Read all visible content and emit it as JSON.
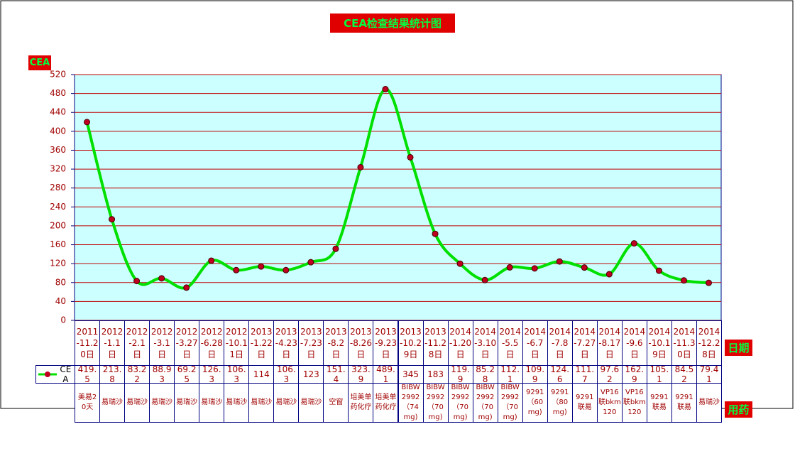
{
  "chart_data": {
    "type": "line",
    "title": "CEA检查结果统计图",
    "y_label": "CEA",
    "x_label": "日期",
    "row_label": "用药",
    "categories": [
      "2011-11.20日",
      "2012-1.1日",
      "2012-2.1日",
      "2012-3.1日",
      "2012-3.27日",
      "2012-6.28日",
      "2012-10.11日",
      "2013-1.22日",
      "2013-4.23日",
      "2013-7.23日",
      "2013-8.2日",
      "2013-8.26日",
      "2013-9.23日",
      "2013-10.29日",
      "2013-11.28日",
      "2014-1.20日",
      "2014-3.10日",
      "2014-5.5日",
      "2014-6.7日",
      "2014-7.8日",
      "2014-7.27日",
      "2014-8.17日",
      "2014-9.6日",
      "2014-10.19日",
      "2014-11.30日",
      "2014-12.28日"
    ],
    "series": [
      {
        "name": "CEA",
        "color": "#00e000",
        "marker_color": "#c00020",
        "values": [
          419.5,
          213.8,
          83.22,
          88.93,
          69.25,
          126.3,
          106.3,
          114,
          106.3,
          123,
          151.4,
          323.9,
          489.1,
          345,
          183,
          119.9,
          85.28,
          112.1,
          109.9,
          124.6,
          111.7,
          97.62,
          162.9,
          105.1,
          84.52,
          79.41
        ]
      }
    ],
    "drugs": [
      "美易20天",
      "易瑞沙",
      "易瑞沙",
      "易瑞沙",
      "易瑞沙",
      "易瑞沙",
      "易瑞沙",
      "易瑞沙",
      "易瑞沙",
      "易瑞沙",
      "空窗",
      "培美单药化疗",
      "培美单药化疗",
      "BIBW2992（74mg)",
      "BIBW2992（70mg)",
      "BIBW2992（70mg)",
      "BIBW2992（70mg)",
      "BIBW2992（70mg)",
      "9291（60mg)",
      "9291（80mg)",
      "9291联易",
      "VP16联bkm120",
      "VP16联bkm120",
      "9291联易",
      "9291联易",
      "易瑞沙"
    ],
    "ylim": [
      0,
      520
    ],
    "yticks": [
      0,
      40,
      80,
      120,
      160,
      200,
      240,
      280,
      320,
      360,
      400,
      440,
      480,
      520
    ],
    "grid": true,
    "grid_color": "#c00000",
    "plot_background": "#ccffff"
  }
}
